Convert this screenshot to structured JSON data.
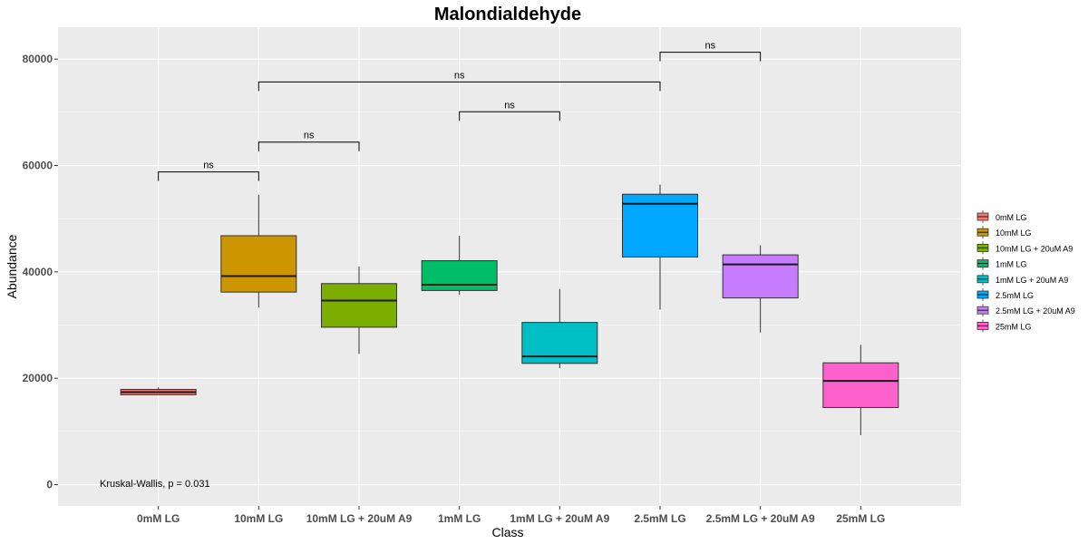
{
  "chart_data": {
    "type": "box",
    "title": "Malondialdehyde",
    "xlabel": "Class",
    "ylabel": "Abundance",
    "ylim": [
      -4000,
      86000
    ],
    "yticks": [
      0,
      20000,
      40000,
      60000,
      80000
    ],
    "ytick_labels": [
      "0",
      "20000",
      "40000",
      "60000",
      "80000"
    ],
    "grid": true,
    "legend_position": "right",
    "annotation": "Kruskal-Wallis, p = 0.031",
    "categories": [
      "0mM LG",
      "10mM LG",
      "10mM LG + 20uM A9",
      "1mM LG",
      "1mM LG + 20uM A9",
      "2.5mM LG",
      "2.5mM LG + 20uM A9",
      "25mM LG"
    ],
    "colors": [
      "#F8766D",
      "#CD9600",
      "#7CAE00",
      "#00BE67",
      "#00BFC4",
      "#00A9FF",
      "#C77CFF",
      "#FF61CC"
    ],
    "boxes": [
      {
        "name": "0mM LG",
        "min": 16900,
        "q1": 16900,
        "median": 17400,
        "q3": 17900,
        "max": 18300
      },
      {
        "name": "10mM LG",
        "min": 33300,
        "q1": 36200,
        "median": 39200,
        "q3": 46800,
        "max": 54500
      },
      {
        "name": "10mM LG + 20uM A9",
        "min": 24600,
        "q1": 29600,
        "median": 34600,
        "q3": 37800,
        "max": 41000
      },
      {
        "name": "1mM LG",
        "min": 35700,
        "q1": 36500,
        "median": 37600,
        "q3": 42100,
        "max": 46800
      },
      {
        "name": "1mM LG + 20uM A9",
        "min": 21900,
        "q1": 22800,
        "median": 24100,
        "q3": 30500,
        "max": 36800
      },
      {
        "name": "2.5mM LG",
        "min": 32900,
        "q1": 42800,
        "median": 52800,
        "q3": 54600,
        "max": 56400
      },
      {
        "name": "2.5mM LG + 20uM A9",
        "min": 28600,
        "q1": 35100,
        "median": 41400,
        "q3": 43200,
        "max": 45000
      },
      {
        "name": "25mM LG",
        "min": 9300,
        "q1": 14500,
        "median": 19500,
        "q3": 22900,
        "max": 26300
      }
    ],
    "comparisons": [
      {
        "from": 0,
        "to": 1,
        "y": 58800,
        "label": "ns"
      },
      {
        "from": 1,
        "to": 2,
        "y": 64400,
        "label": "ns"
      },
      {
        "from": 3,
        "to": 4,
        "y": 70100,
        "label": "ns"
      },
      {
        "from": 1,
        "to": 5,
        "y": 75700,
        "label": "ns"
      },
      {
        "from": 5,
        "to": 6,
        "y": 81300,
        "label": "ns"
      }
    ]
  }
}
